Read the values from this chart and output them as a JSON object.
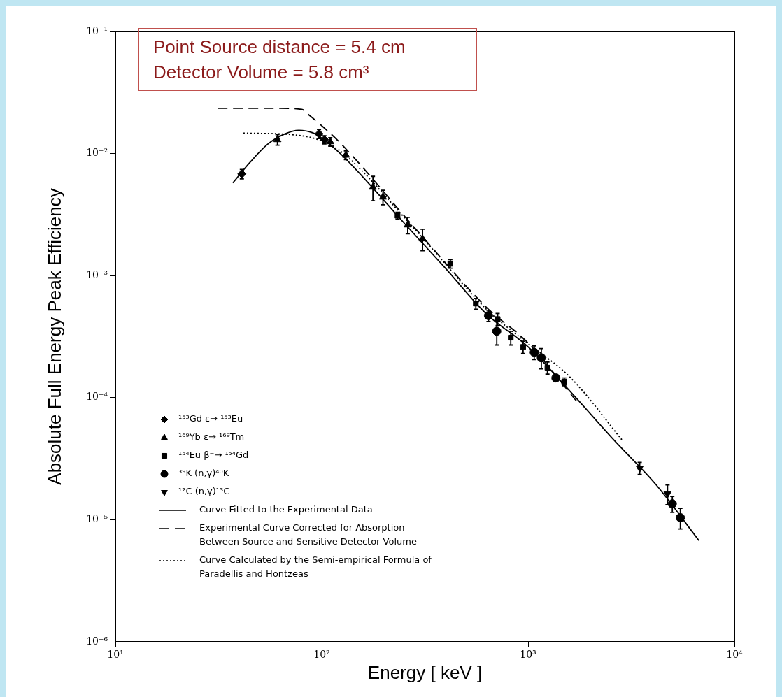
{
  "chart_data": {
    "type": "scatter",
    "xlabel": "Energy [ keV ]",
    "ylabel": "Absolute Full Energy Peak Efficiency",
    "log": "xy",
    "grid": false,
    "legend": "bottom left",
    "xlim": [
      10,
      10000
    ],
    "ylim": [
      1e-06,
      0.1
    ],
    "xticks": [
      {
        "value": 10,
        "label": "10¹"
      },
      {
        "value": 100,
        "label": "10²"
      },
      {
        "value": 1000,
        "label": "10³"
      },
      {
        "value": 10000,
        "label": "10⁴"
      }
    ],
    "yticks": [
      {
        "value": 1e-06,
        "label": "10⁻⁶"
      },
      {
        "value": 1e-05,
        "label": "10⁻⁵"
      },
      {
        "value": 0.0001,
        "label": "10⁻⁴"
      },
      {
        "value": 0.001,
        "label": "10⁻³"
      },
      {
        "value": 0.01,
        "label": "10⁻²"
      },
      {
        "value": 0.1,
        "label": "10⁻¹"
      }
    ],
    "annotations": [
      "Point Source distance = 5.4 cm",
      "Detector Volume = 5.8 cm³"
    ],
    "series": [
      {
        "name": "¹⁵³Gd ε→ ¹⁵³Eu",
        "type": "scatter",
        "marker": "diamond",
        "color": "#000000",
        "x": [
          41,
          97,
          103
        ],
        "values": [
          0.0068,
          0.0145,
          0.013
        ],
        "errors": [
          0.0006,
          0.0012,
          0.001
        ]
      },
      {
        "name": "¹⁶⁹Yb ε→ ¹⁶⁹Tm",
        "type": "scatter",
        "marker": "triangle",
        "color": "#000000",
        "x": [
          61,
          110,
          131,
          177,
          198,
          261,
          308
        ],
        "values": [
          0.013,
          0.0125,
          0.0097,
          0.0053,
          0.0044,
          0.0026,
          0.002
        ],
        "errors": [
          0.0013,
          0.001,
          0.0008,
          0.0012,
          0.0006,
          0.0004,
          0.0004
        ]
      },
      {
        "name": "¹⁵⁴Eu β⁻→ ¹⁵⁴Gd",
        "type": "scatter",
        "marker": "square",
        "color": "#000000",
        "x": [
          233,
          420,
          558,
          712,
          824,
          946,
          1241,
          1497
        ],
        "values": [
          0.0031,
          0.00125,
          0.00059,
          0.00044,
          0.00031,
          0.00026,
          0.000176,
          0.000135
        ],
        "errors": [
          0.0002,
          0.0001,
          6e-05,
          5e-05,
          4e-05,
          3e-05,
          2e-05,
          1e-05
        ]
      },
      {
        "name": "³⁹K (n,γ)⁴⁰K",
        "type": "scatter",
        "marker": "circle",
        "color": "#000000",
        "x": [
          643,
          705,
          1071,
          1159,
          1364,
          5000,
          5470
        ],
        "values": [
          0.00047,
          0.00035,
          0.000235,
          0.000212,
          0.000145,
          1.35e-05,
          1.04e-05
        ],
        "errors": [
          5e-05,
          8e-05,
          3e-05,
          4e-05,
          1e-05,
          2e-06,
          2e-06
        ]
      },
      {
        "name": "¹²C (n,γ)¹³C",
        "type": "scatter",
        "marker": "triangle-down",
        "color": "#000000",
        "x": [
          3475,
          4740
        ],
        "values": [
          2.65e-05,
          1.63e-05
        ],
        "errors": [
          3e-06,
          3e-06
        ]
      },
      {
        "name": "Curve Fitted to the Experimental Data",
        "type": "line",
        "line_style": "solid",
        "color": "#000000",
        "x": [
          37.1,
          45,
          54.6,
          66.4,
          77.4,
          90.4,
          100,
          123,
          168,
          248,
          394,
          628,
          1000,
          1611,
          2592,
          4175,
          6730
        ],
        "values": [
          0.00575,
          0.0085,
          0.0119,
          0.0145,
          0.0155,
          0.0148,
          0.0134,
          0.01,
          0.00575,
          0.00275,
          0.00117,
          0.000485,
          0.000261,
          0.000111,
          4.54e-05,
          1.93e-05,
          6.75e-06
        ]
      },
      {
        "name": "Experimental Curve Corrected for Absorption Between Source and Sensitive Detector Volume",
        "type": "line",
        "line_style": "dashed",
        "color": "#000000",
        "x": [
          31.3,
          60,
          80,
          87,
          100,
          123,
          289,
          628,
          1000,
          1714
        ],
        "values": [
          0.0235,
          0.0235,
          0.023,
          0.0206,
          0.0169,
          0.0122,
          0.00235,
          0.00055,
          0.00028,
          9.4e-05
        ]
      },
      {
        "name": "Curve Calculated by the Semi-empirical Formula of Paradellis and Hontzeas",
        "type": "line",
        "line_style": "dotted",
        "color": "#000000",
        "x": [
          41.7,
          74.5,
          100,
          123,
          289,
          628,
          946,
          1611,
          2877
        ],
        "values": [
          0.0147,
          0.0142,
          0.0127,
          0.0105,
          0.0023,
          0.00053,
          0.000298,
          0.000145,
          4.43e-05
        ]
      }
    ]
  }
}
